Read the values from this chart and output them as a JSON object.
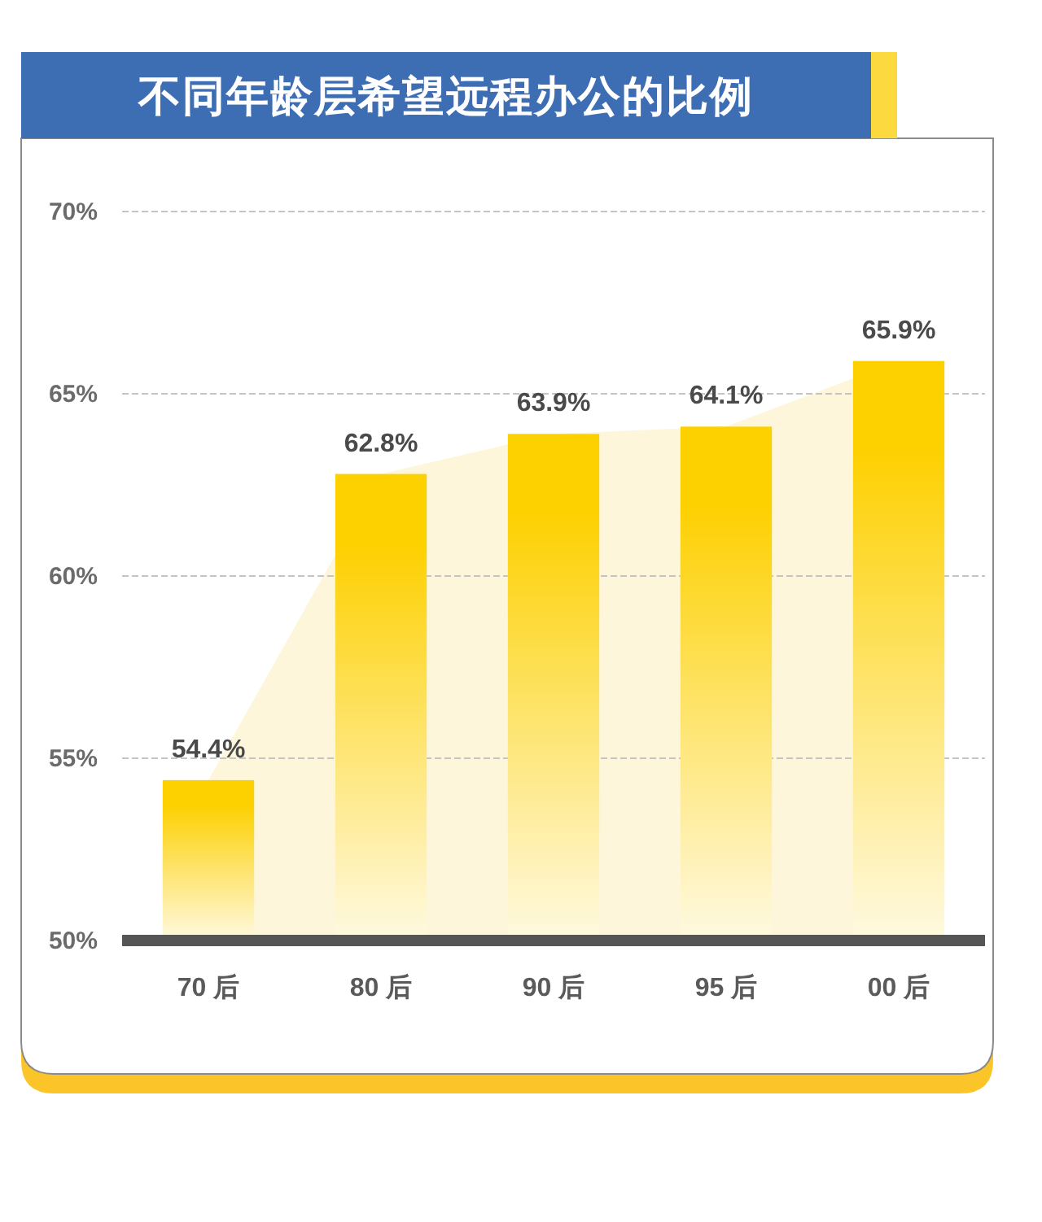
{
  "chart_data": {
    "type": "bar",
    "title": "不同年龄层希望远程办公的比例",
    "categories": [
      "70 后",
      "80 后",
      "90 后",
      "95 后",
      "00 后"
    ],
    "series": [
      {
        "type": "area",
        "color": "#fdf6da",
        "values": [
          54.4,
          62.8,
          63.9,
          64.1,
          65.9
        ]
      },
      {
        "color": "#fdd000",
        "values": [
          54.4,
          62.8,
          63.9,
          64.1,
          65.9
        ],
        "value_labels": [
          "54.4%",
          "62.8%",
          "63.9%",
          "64.1%",
          "65.9%"
        ]
      }
    ],
    "ylim": [
      50,
      70
    ],
    "yticks": [
      {
        "value": 50,
        "label": "50%"
      },
      {
        "value": 55,
        "label": "55%"
      },
      {
        "value": 60,
        "label": "60%"
      },
      {
        "value": 65,
        "label": "65%"
      },
      {
        "value": 70,
        "label": "70%"
      }
    ],
    "grid": "y"
  }
}
